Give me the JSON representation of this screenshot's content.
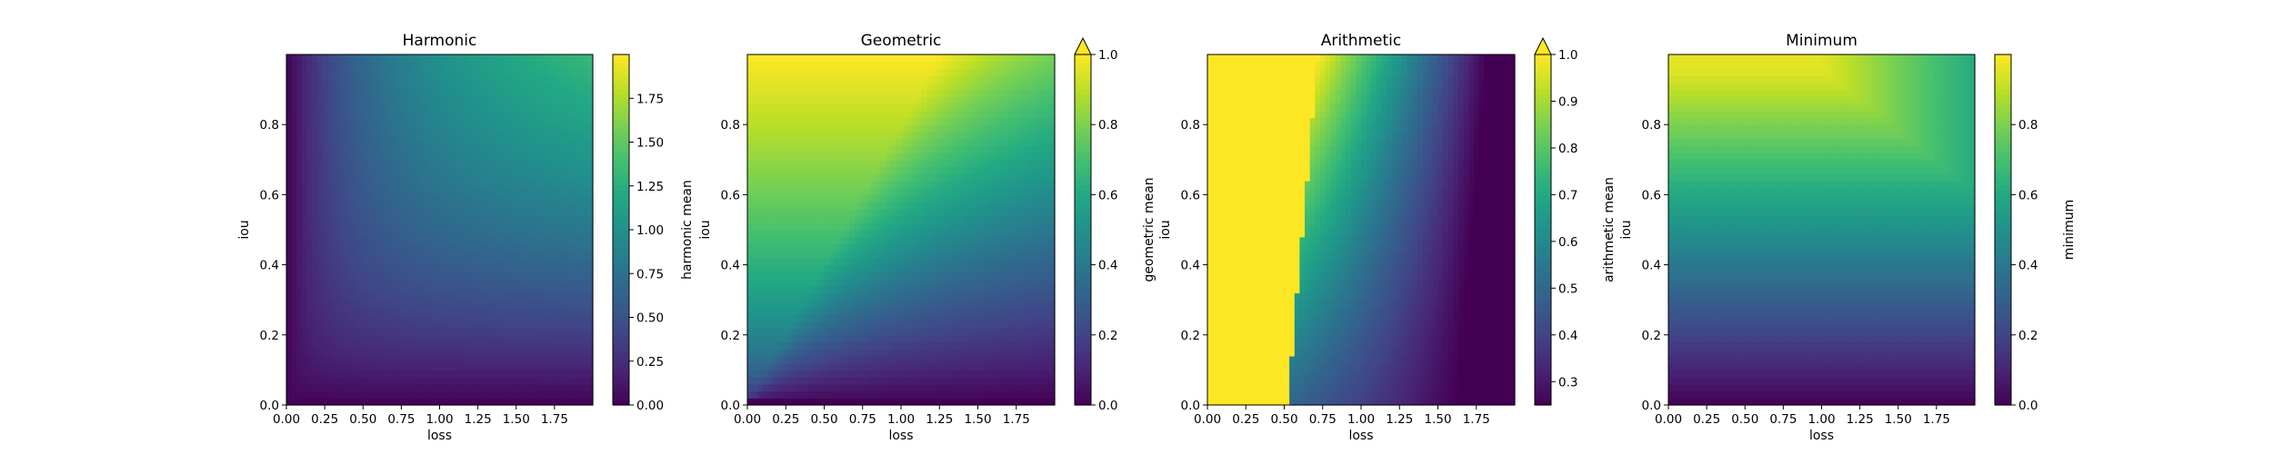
{
  "chart_data": [
    {
      "type": "heatmap",
      "title": "Harmonic",
      "xlabel": "loss",
      "ylabel": "iou",
      "xlim": [
        0,
        2
      ],
      "ylim": [
        0,
        1
      ],
      "x_ticks": [
        "0.00",
        "0.25",
        "0.50",
        "0.75",
        "1.00",
        "1.25",
        "1.50",
        "1.75"
      ],
      "y_ticks": [
        "0.0",
        "0.2",
        "0.4",
        "0.6",
        "0.8"
      ],
      "colorbar": {
        "label": "harmonic mean",
        "range": [
          0,
          2
        ],
        "ticks": [
          "0.00",
          "0.25",
          "0.50",
          "0.75",
          "1.00",
          "1.25",
          "1.50",
          "1.75"
        ],
        "extend": "neither"
      },
      "function": "harmonic"
    },
    {
      "type": "heatmap",
      "title": "Geometric",
      "xlabel": "loss",
      "ylabel": "iou",
      "xlim": [
        0,
        2
      ],
      "ylim": [
        0,
        1
      ],
      "x_ticks": [
        "0.00",
        "0.25",
        "0.50",
        "0.75",
        "1.00",
        "1.25",
        "1.50",
        "1.75"
      ],
      "y_ticks": [
        "0.0",
        "0.2",
        "0.4",
        "0.6",
        "0.8"
      ],
      "colorbar": {
        "label": "geometric mean",
        "range": [
          0,
          1
        ],
        "ticks": [
          "0.0",
          "0.2",
          "0.4",
          "0.6",
          "0.8",
          "1.0"
        ],
        "extend": "max"
      },
      "function": "geometric"
    },
    {
      "type": "heatmap",
      "title": "Arithmetic",
      "xlabel": "loss",
      "ylabel": "iou",
      "xlim": [
        0,
        2
      ],
      "ylim": [
        0,
        1
      ],
      "x_ticks": [
        "0.00",
        "0.25",
        "0.50",
        "0.75",
        "1.00",
        "1.25",
        "1.50",
        "1.75"
      ],
      "y_ticks": [
        "0.0",
        "0.2",
        "0.4",
        "0.6",
        "0.8"
      ],
      "colorbar": {
        "label": "arithmetic mean",
        "range": [
          0.25,
          1.0
        ],
        "ticks": [
          "0.3",
          "0.4",
          "0.5",
          "0.6",
          "0.7",
          "0.8",
          "0.9",
          "1.0"
        ],
        "extend": "max"
      },
      "function": "arithmetic"
    },
    {
      "type": "heatmap",
      "title": "Minimum",
      "xlabel": "loss",
      "ylabel": "iou",
      "xlim": [
        0,
        2
      ],
      "ylim": [
        0,
        1
      ],
      "x_ticks": [
        "0.00",
        "0.25",
        "0.50",
        "0.75",
        "1.00",
        "1.25",
        "1.50",
        "1.75"
      ],
      "y_ticks": [
        "0.0",
        "0.2",
        "0.4",
        "0.6",
        "0.8"
      ],
      "colorbar": {
        "label": "minimum",
        "range": [
          0,
          1
        ],
        "ticks": [
          "0.0",
          "0.2",
          "0.4",
          "0.6",
          "0.8"
        ],
        "extend": "neither"
      },
      "function": "minimum"
    }
  ],
  "colormap": "viridis"
}
